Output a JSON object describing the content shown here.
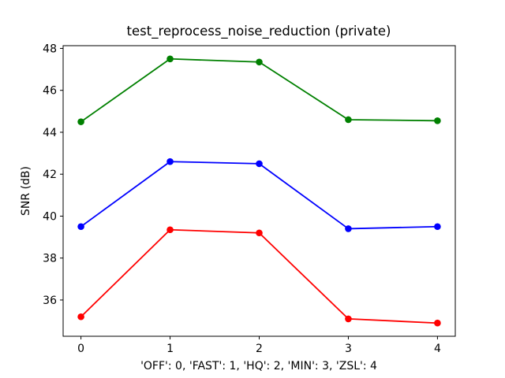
{
  "figure": {
    "background": "#ffffff",
    "spine_color": "#000000",
    "text_color": "#000000"
  },
  "chart_data": {
    "type": "line",
    "title": "test_reprocess_noise_reduction (private)",
    "xlabel": "'OFF': 0, 'FAST': 1, 'HQ': 2, 'MIN': 3, 'ZSL': 4",
    "ylabel": "SNR (dB)",
    "x": [
      0,
      1,
      2,
      3,
      4
    ],
    "xticks": [
      0,
      1,
      2,
      3,
      4
    ],
    "yticks": [
      36,
      38,
      40,
      42,
      44,
      46,
      48
    ],
    "xlim": [
      -0.2,
      4.2
    ],
    "ylim": [
      34.27,
      48.13
    ],
    "grid": false,
    "legend": "none",
    "marker": "circle",
    "series": [
      {
        "name": "green-series",
        "color": "#008000",
        "values": [
          44.5,
          47.5,
          47.35,
          44.6,
          44.55
        ]
      },
      {
        "name": "blue-series",
        "color": "#0000ff",
        "values": [
          39.5,
          42.6,
          42.5,
          39.4,
          39.5
        ]
      },
      {
        "name": "red-series",
        "color": "#ff0000",
        "values": [
          35.2,
          39.35,
          39.2,
          35.1,
          34.9
        ]
      }
    ]
  }
}
